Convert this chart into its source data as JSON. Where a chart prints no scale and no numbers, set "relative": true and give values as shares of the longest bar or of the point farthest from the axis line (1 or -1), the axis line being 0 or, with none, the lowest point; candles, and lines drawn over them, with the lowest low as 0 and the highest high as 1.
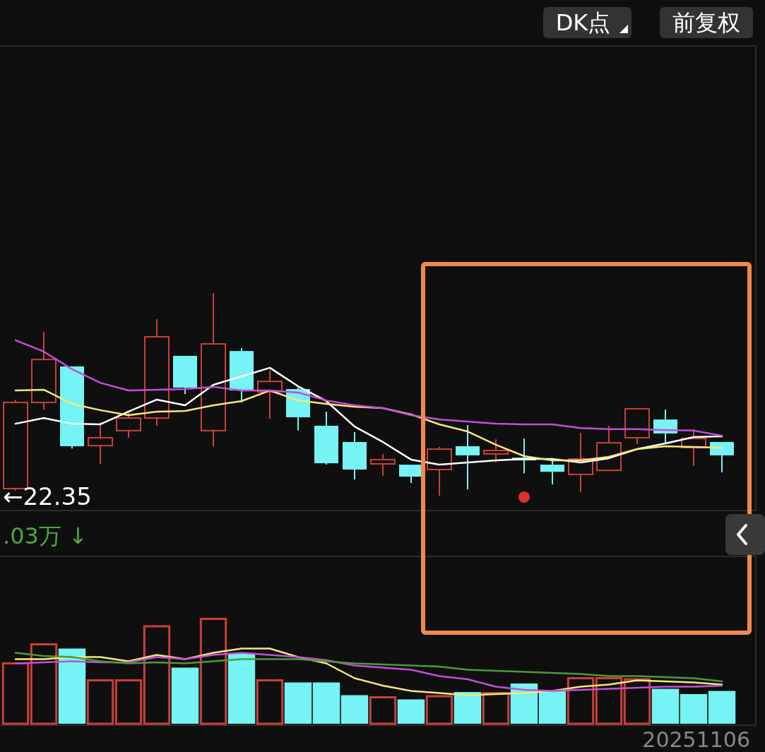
{
  "chart_data": [
    {
      "type": "candlestick",
      "relative": true,
      "categories": [
        null,
        null,
        null,
        null,
        null,
        null,
        null,
        null,
        null,
        null,
        null,
        null,
        null,
        null,
        null,
        null,
        null,
        null,
        null,
        null,
        null,
        null,
        null,
        null,
        null,
        null
      ],
      "ohlc": [
        [
          0.035,
          0.474,
          0.024,
          0.46
        ],
        [
          0.46,
          0.808,
          0.425,
          0.672
        ],
        [
          0.638,
          0.638,
          0.233,
          0.244
        ],
        [
          0.247,
          0.362,
          0.157,
          0.286
        ],
        [
          0.321,
          0.418,
          0.286,
          0.383
        ],
        [
          0.383,
          0.871,
          0.345,
          0.784
        ],
        [
          0.69,
          0.69,
          0.502,
          0.533
        ],
        [
          0.321,
          1.0,
          0.244,
          0.749
        ],
        [
          0.714,
          0.728,
          0.46,
          0.519
        ],
        [
          0.512,
          0.617,
          0.38,
          0.564
        ],
        [
          0.526,
          0.533,
          0.321,
          0.387
        ],
        [
          0.345,
          0.415,
          0.153,
          0.16
        ],
        [
          0.265,
          0.314,
          0.08,
          0.129
        ],
        [
          0.157,
          0.206,
          0.098,
          0.178
        ],
        [
          0.153,
          0.153,
          0.063,
          0.094
        ],
        [
          0.129,
          0.24,
          0.0,
          0.23
        ],
        [
          0.244,
          0.348,
          0.031,
          0.199
        ],
        [
          0.206,
          0.279,
          0.164,
          0.223
        ],
        [
          0.188,
          0.282,
          0.111,
          0.174
        ],
        [
          0.153,
          0.174,
          0.056,
          0.118
        ],
        [
          0.105,
          0.31,
          0.017,
          0.181
        ],
        [
          0.125,
          0.345,
          0.122,
          0.261
        ],
        [
          0.286,
          0.429,
          0.254,
          0.429
        ],
        [
          0.376,
          0.425,
          0.261,
          0.307
        ],
        [
          0.237,
          0.328,
          0.146,
          0.282
        ],
        [
          0.265,
          0.265,
          0.115,
          0.199
        ]
      ],
      "colors": [
        "#c8403a",
        "#c8403a",
        "#75f3f5",
        "#c8403a",
        "#c8403a",
        "#c8403a",
        "#75f3f5",
        "#c8403a",
        "#75f3f5",
        "#c8403a",
        "#75f3f5",
        "#75f3f5",
        "#75f3f5",
        "#c8403a",
        "#75f3f5",
        "#c8403a",
        "#75f3f5",
        "#c8403a",
        "#75f3f5",
        "#75f3f5",
        "#c8403a",
        "#c8403a",
        "#c8403a",
        "#75f3f5",
        "#c8403a",
        "#75f3f5"
      ],
      "series": [
        {
          "type": "line",
          "color": "#ffffff",
          "values": [
            0.355,
            0.383,
            0.355,
            0.352,
            0.415,
            0.474,
            0.446,
            0.547,
            0.589,
            0.631,
            0.54,
            0.467,
            0.341,
            0.265,
            0.178,
            0.153,
            0.164,
            0.174,
            0.181,
            0.181,
            0.164,
            0.185,
            0.23,
            0.258,
            0.289,
            0.293
          ]
        },
        {
          "type": "line",
          "color": "#f7e77a",
          "values": [
            0.519,
            0.523,
            0.453,
            0.422,
            0.397,
            0.415,
            0.418,
            0.446,
            0.467,
            0.519,
            0.47,
            0.453,
            0.439,
            0.432,
            0.401,
            0.352,
            0.317,
            0.251,
            0.195,
            0.174,
            0.174,
            0.192,
            0.23,
            0.244,
            0.24,
            0.237
          ]
        },
        {
          "type": "line",
          "color": "#c24fd6",
          "values": [
            0.767,
            0.711,
            0.624,
            0.557,
            0.519,
            0.523,
            0.526,
            0.537,
            0.519,
            0.519,
            0.509,
            0.47,
            0.446,
            0.432,
            0.397,
            0.376,
            0.366,
            0.355,
            0.352,
            0.352,
            0.334,
            0.328,
            0.328,
            0.324,
            0.321,
            0.296
          ]
        }
      ],
      "annotations": [
        "DK点",
        "前复权",
        "←22.35"
      ]
    },
    {
      "type": "bar",
      "relative": true,
      "categories": [
        null,
        null,
        null,
        null,
        null,
        null,
        null,
        null,
        null,
        null,
        null,
        null,
        null,
        null,
        null,
        null,
        null,
        null,
        null,
        null,
        null,
        null,
        null,
        null,
        null,
        null
      ],
      "series": [
        {
          "type": "bar",
          "values": [
            0.58,
            0.76,
            0.71,
            0.42,
            0.42,
            0.93,
            0.53,
            1.0,
            0.66,
            0.42,
            0.39,
            0.39,
            0.27,
            0.26,
            0.23,
            0.27,
            0.3,
            0.3,
            0.38,
            0.31,
            0.44,
            0.44,
            0.43,
            0.33,
            0.28,
            0.31
          ],
          "colors": [
            "#c8403a",
            "#c8403a",
            "#75f3f5",
            "#c8403a",
            "#c8403a",
            "#c8403a",
            "#75f3f5",
            "#c8403a",
            "#75f3f5",
            "#c8403a",
            "#75f3f5",
            "#75f3f5",
            "#75f3f5",
            "#c8403a",
            "#75f3f5",
            "#c8403a",
            "#75f3f5",
            "#c8403a",
            "#75f3f5",
            "#75f3f5",
            "#c8403a",
            "#c8403a",
            "#c8403a",
            "#75f3f5",
            "#75f3f5",
            "#75f3f5"
          ]
        },
        {
          "type": "line",
          "color": "#f7e77a",
          "values": [
            0.61,
            0.61,
            0.63,
            0.63,
            0.59,
            0.65,
            0.61,
            0.67,
            0.71,
            0.71,
            0.63,
            0.57,
            0.43,
            0.36,
            0.31,
            0.29,
            0.27,
            0.28,
            0.29,
            0.31,
            0.35,
            0.37,
            0.41,
            0.4,
            0.39,
            0.37
          ]
        },
        {
          "type": "line",
          "color": "#c24fd6",
          "values": [
            0.57,
            0.58,
            0.59,
            0.58,
            0.58,
            0.63,
            0.61,
            0.65,
            0.67,
            0.65,
            0.63,
            0.6,
            0.55,
            0.53,
            0.51,
            0.45,
            0.42,
            0.35,
            0.32,
            0.31,
            0.32,
            0.33,
            0.34,
            0.35,
            0.35,
            0.36
          ]
        },
        {
          "type": "line",
          "color": "#4c9a3a",
          "values": [
            0.67,
            0.64,
            0.63,
            0.59,
            0.57,
            0.58,
            0.57,
            0.59,
            0.61,
            0.61,
            0.61,
            0.59,
            0.57,
            0.56,
            0.55,
            0.54,
            0.51,
            0.5,
            0.49,
            0.48,
            0.47,
            0.45,
            0.45,
            0.44,
            0.43,
            0.4
          ]
        }
      ],
      "annotations": [
        ".03万 ↓",
        "20251106"
      ]
    }
  ]
}
